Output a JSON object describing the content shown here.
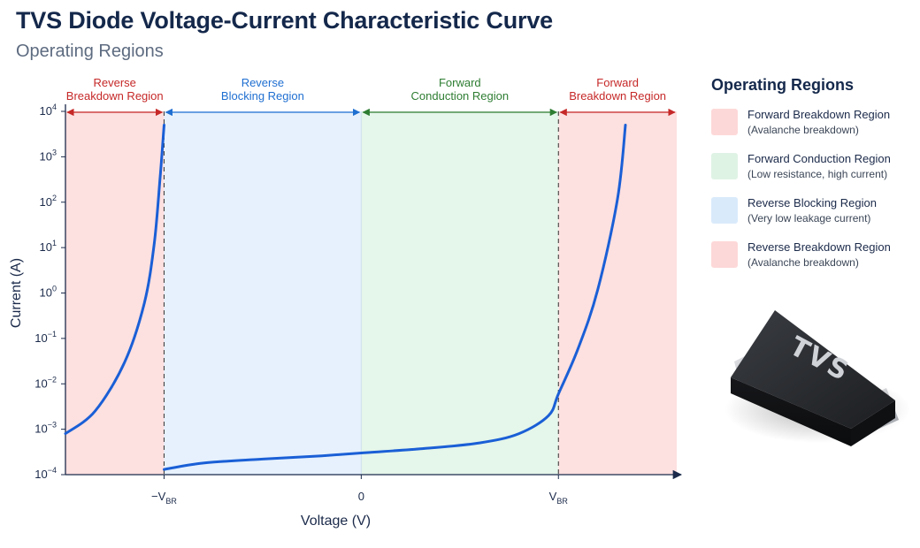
{
  "header": {
    "title": "TVS Diode Voltage-Current Characteristic Curve",
    "subtitle": "Operating Regions"
  },
  "chart_data": {
    "type": "line",
    "title": "TVS Diode Voltage-Current Characteristic Curve",
    "subtitle": "Operating Regions",
    "xlabel": "Voltage (V)",
    "ylabel": "Current (A)",
    "yscale": "log",
    "ylim": [
      0.0001,
      10000
    ],
    "y_ticks": [
      -4,
      -3,
      -2,
      -1,
      0,
      1,
      2,
      3,
      4
    ],
    "x_ticks": [
      {
        "main": "−V",
        "sub": "BR",
        "value": -1
      },
      {
        "main": "0",
        "sub": "",
        "value": 0
      },
      {
        "main": "V",
        "sub": "BR",
        "value": 1
      }
    ],
    "xlim": [
      -1.5,
      1.6
    ],
    "grid": false,
    "regions": [
      {
        "name": "Reverse Breakdown Region",
        "label_lines": [
          "Reverse",
          "Breakdown Region"
        ],
        "x_range": [
          -1.5,
          -1
        ],
        "fill": "#fde0e0",
        "text_color": "#c62828"
      },
      {
        "name": "Reverse Blocking Region",
        "label_lines": [
          "Reverse",
          "Blocking Region"
        ],
        "x_range": [
          -1,
          0
        ],
        "fill": "#e6f1fd",
        "text_color": "#1f6fd1"
      },
      {
        "name": "Forward Conduction Region",
        "label_lines": [
          "Forward",
          "Conduction Region"
        ],
        "x_range": [
          0,
          1
        ],
        "fill": "#e5f6ea",
        "text_color": "#2e7d32"
      },
      {
        "name": "Forward Breakdown Region",
        "label_lines": [
          "Forward",
          "Breakdown Region"
        ],
        "x_range": [
          1,
          1.6
        ],
        "fill": "#fde0e0",
        "text_color": "#c62828"
      }
    ],
    "series": [
      {
        "color": "#1a5fd6",
        "segments": [
          {
            "x": [
              -1.5,
              -1.35,
              -1.2,
              -1.1,
              -1.05,
              -1.02,
              -1.0
            ],
            "y": [
              0.0008,
              0.0025,
              0.03,
              0.6,
              12,
              350,
              5000
            ]
          },
          {
            "x": [
              -1.0,
              -0.8,
              -0.5,
              -0.2,
              0.0,
              0.3,
              0.6,
              0.8,
              0.95,
              1.0,
              1.1,
              1.2,
              1.3,
              1.34
            ],
            "y": [
              0.00013,
              0.00018,
              0.00022,
              0.00026,
              0.0003,
              0.00037,
              0.0005,
              0.0008,
              0.002,
              0.006,
              0.06,
              1.2,
              120,
              5000
            ]
          }
        ]
      }
    ]
  },
  "legend": {
    "title": "Operating Regions",
    "items": [
      {
        "name": "Forward Breakdown Region",
        "desc": "(Avalanche breakdown)",
        "color": "#fdd8d8"
      },
      {
        "name": "Forward Conduction Region",
        "desc": "(Low resistance, high current)",
        "color": "#dff3e5"
      },
      {
        "name": "Reverse Blocking Region",
        "desc": "(Very low leakage current)",
        "color": "#d9eafb"
      },
      {
        "name": "Reverse Breakdown Region",
        "desc": "(Avalanche breakdown)",
        "color": "#fdd8d8"
      }
    ]
  },
  "device": {
    "label": "TVS",
    "icon": "tvs-diode-package-icon"
  }
}
